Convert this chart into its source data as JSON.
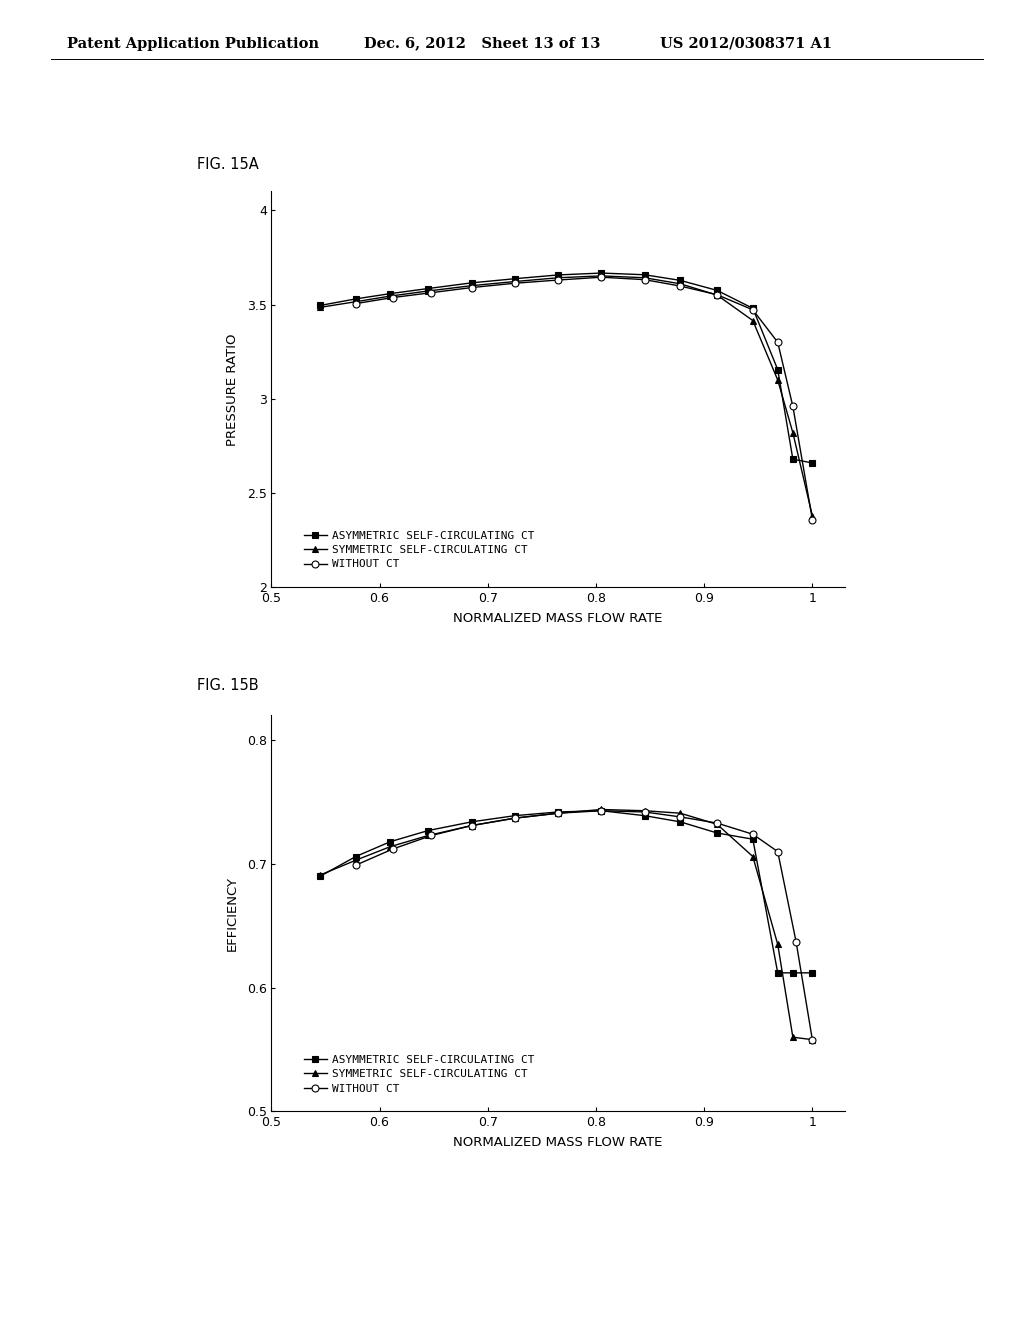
{
  "header_left": "Patent Application Publication",
  "header_mid": "Dec. 6, 2012   Sheet 13 of 13",
  "header_right": "US 2012/0308371 A1",
  "fig_label_a": "FIG. 15A",
  "fig_label_b": "FIG. 15B",
  "plot_a": {
    "xlabel": "NORMALIZED MASS FLOW RATE",
    "ylabel": "PRESSURE RATIO",
    "xlim": [
      0.5,
      1.03
    ],
    "ylim": [
      2.0,
      4.1
    ],
    "xticks": [
      0.5,
      0.6,
      0.7,
      0.8,
      0.9,
      1.0
    ],
    "xticklabels": [
      "0.5",
      "0.6",
      "0.7",
      "0.8",
      "0.9",
      "1"
    ],
    "yticks": [
      2.0,
      2.5,
      3.0,
      3.5,
      4.0
    ],
    "yticklabels": [
      "2",
      "2.5",
      "3",
      "3.5",
      "4"
    ],
    "series": [
      {
        "label": "ASYMMETRIC SELF-CIRCULATING CT",
        "marker": "s",
        "linestyle": "-",
        "color": "#000000",
        "markerface": "black",
        "x": [
          0.545,
          0.578,
          0.61,
          0.645,
          0.685,
          0.725,
          0.765,
          0.805,
          0.845,
          0.878,
          0.912,
          0.945,
          0.968,
          0.982,
          1.0
        ],
        "y": [
          3.495,
          3.53,
          3.558,
          3.585,
          3.615,
          3.637,
          3.657,
          3.667,
          3.658,
          3.628,
          3.575,
          3.48,
          3.155,
          2.68,
          2.66
        ]
      },
      {
        "label": "SYMMETRIC SELF-CIRCULATING CT",
        "marker": "^",
        "linestyle": "-",
        "color": "#000000",
        "markerface": "black",
        "x": [
          0.545,
          0.578,
          0.61,
          0.645,
          0.685,
          0.725,
          0.765,
          0.805,
          0.845,
          0.878,
          0.912,
          0.945,
          0.968,
          0.982,
          1.0
        ],
        "y": [
          3.485,
          3.515,
          3.545,
          3.572,
          3.6,
          3.622,
          3.642,
          3.652,
          3.642,
          3.61,
          3.55,
          3.415,
          3.1,
          2.82,
          2.38
        ]
      },
      {
        "label": "WITHOUT CT",
        "marker": "o",
        "linestyle": "-",
        "color": "#000000",
        "markerface": "white",
        "x": [
          0.578,
          0.612,
          0.648,
          0.685,
          0.725,
          0.765,
          0.805,
          0.845,
          0.878,
          0.912,
          0.945,
          0.968,
          0.982,
          1.0
        ],
        "y": [
          3.505,
          3.537,
          3.563,
          3.59,
          3.613,
          3.63,
          3.645,
          3.632,
          3.598,
          3.552,
          3.472,
          3.3,
          2.96,
          2.36
        ]
      }
    ]
  },
  "plot_b": {
    "xlabel": "NORMALIZED MASS FLOW RATE",
    "ylabel": "EFFICIENCY",
    "xlim": [
      0.5,
      1.03
    ],
    "ylim": [
      0.5,
      0.82
    ],
    "xticks": [
      0.5,
      0.6,
      0.7,
      0.8,
      0.9,
      1.0
    ],
    "xticklabels": [
      "0.5",
      "0.6",
      "0.7",
      "0.8",
      "0.9",
      "1"
    ],
    "yticks": [
      0.5,
      0.6,
      0.7,
      0.8
    ],
    "yticklabels": [
      "0.5",
      "0.6",
      "0.7",
      "0.8"
    ],
    "series": [
      {
        "label": "ASYMMETRIC SELF-CIRCULATING CT",
        "marker": "s",
        "linestyle": "-",
        "color": "#000000",
        "markerface": "black",
        "x": [
          0.545,
          0.578,
          0.61,
          0.645,
          0.685,
          0.725,
          0.765,
          0.805,
          0.845,
          0.878,
          0.912,
          0.945,
          0.968,
          0.982,
          1.0
        ],
        "y": [
          0.69,
          0.706,
          0.718,
          0.727,
          0.734,
          0.739,
          0.742,
          0.743,
          0.739,
          0.734,
          0.725,
          0.72,
          0.612,
          0.612,
          0.612
        ]
      },
      {
        "label": "SYMMETRIC SELF-CIRCULATING CT",
        "marker": "^",
        "linestyle": "-",
        "color": "#000000",
        "markerface": "black",
        "x": [
          0.545,
          0.578,
          0.61,
          0.645,
          0.685,
          0.725,
          0.765,
          0.805,
          0.845,
          0.878,
          0.912,
          0.945,
          0.968,
          0.982,
          1.0
        ],
        "y": [
          0.691,
          0.703,
          0.714,
          0.723,
          0.731,
          0.737,
          0.741,
          0.744,
          0.743,
          0.741,
          0.732,
          0.706,
          0.635,
          0.56,
          0.558
        ]
      },
      {
        "label": "WITHOUT CT",
        "marker": "o",
        "linestyle": "-",
        "color": "#000000",
        "markerface": "white",
        "x": [
          0.578,
          0.612,
          0.648,
          0.685,
          0.725,
          0.765,
          0.805,
          0.845,
          0.878,
          0.912,
          0.945,
          0.968,
          0.985,
          1.0
        ],
        "y": [
          0.699,
          0.712,
          0.723,
          0.731,
          0.737,
          0.741,
          0.743,
          0.742,
          0.738,
          0.733,
          0.724,
          0.71,
          0.637,
          0.558
        ]
      }
    ]
  },
  "background_color": "#ffffff",
  "font_color": "#000000",
  "marker_size": 5,
  "line_width": 1.0
}
